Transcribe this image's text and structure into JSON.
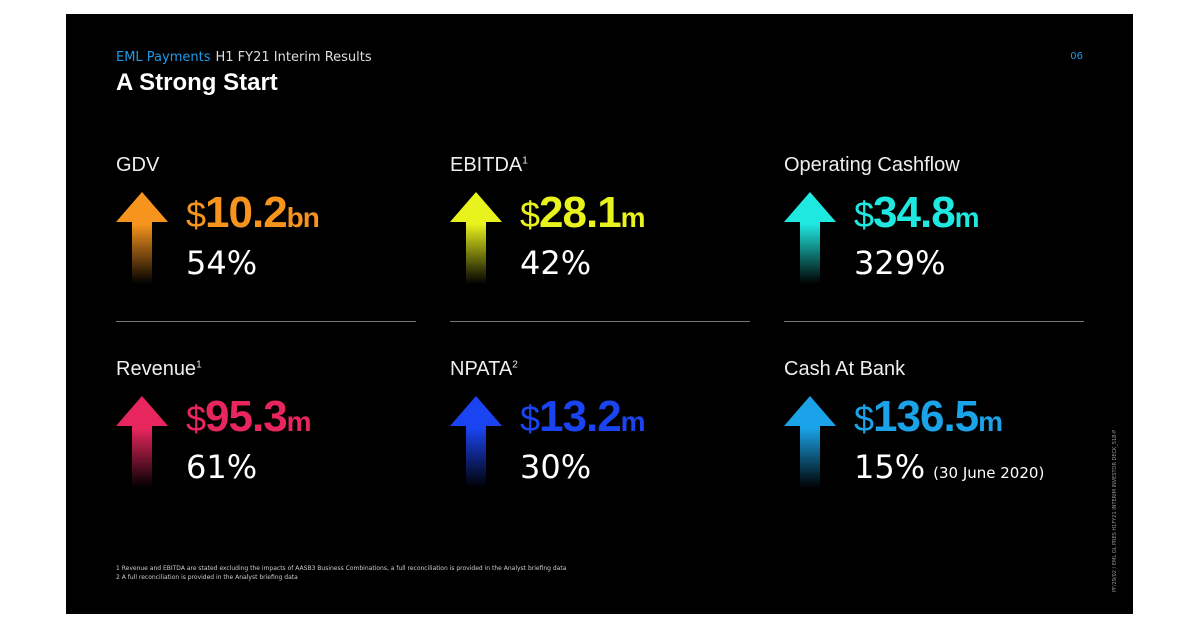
{
  "header": {
    "company": "EML Payments",
    "subtitle": "H1 FY21 Interim Results",
    "title": "A Strong Start",
    "page_number": "06"
  },
  "metrics": [
    {
      "label": "GDV",
      "sup": "",
      "currency": "$",
      "amount": "10.2",
      "unit": "bn",
      "change": "54%",
      "note": "",
      "color": "#f7941d"
    },
    {
      "label": "EBITDA",
      "sup": "1",
      "currency": "$",
      "amount": "28.1",
      "unit": "m",
      "change": "42%",
      "note": "",
      "color": "#e8f21c"
    },
    {
      "label": "Operating Cashflow",
      "sup": "",
      "currency": "$",
      "amount": "34.8",
      "unit": "m",
      "change": "329%",
      "note": "",
      "color": "#1fe8e0"
    },
    {
      "label": "Revenue",
      "sup": "1",
      "currency": "$",
      "amount": "95.3",
      "unit": "m",
      "change": "61%",
      "note": "",
      "color": "#e8265e"
    },
    {
      "label": "NPATA",
      "sup": "2",
      "currency": "$",
      "amount": "13.2",
      "unit": "m",
      "change": "30%",
      "note": "",
      "color": "#1a44f2"
    },
    {
      "label": "Cash At Bank",
      "sup": "",
      "currency": "$",
      "amount": "136.5",
      "unit": "m",
      "change": "15%",
      "note": "(30 June 2020)",
      "color": "#1aa3e8"
    }
  ],
  "footnotes": [
    "1 Revenue and EBITDA are stated excluding the impacts of AASB3 Business Combinations, a full reconciliation is provided in the Analyst briefing data",
    "2 A full reconciliation is provided in the Analyst briefing data"
  ],
  "side_text": "PF/29/02 / EML OL PRES H1FY21 INTERIM INVESTOR DECK_518-P"
}
